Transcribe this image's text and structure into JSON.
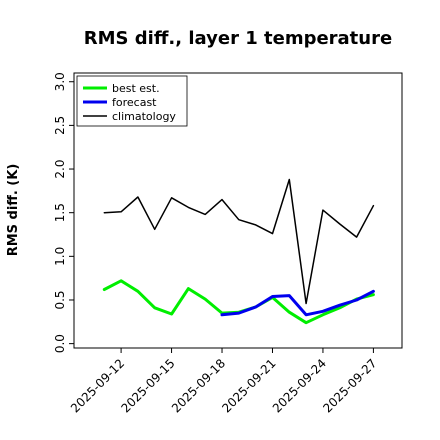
{
  "chart_data": {
    "type": "line",
    "title": "RMS diff., layer 1 temperature",
    "xlabel": "",
    "ylabel": "RMS diff. (K)",
    "ylim": [
      -0.05,
      3.1
    ],
    "yticks": [
      0.0,
      0.5,
      1.0,
      1.5,
      2.0,
      2.5,
      3.0
    ],
    "ytick_labels": [
      "0.0",
      "0.5",
      "1.0",
      "1.5",
      "2.0",
      "2.5",
      "3.0"
    ],
    "xticks": [
      {
        "label": "2025-09-12",
        "day": 12,
        "color": "#000000"
      },
      {
        "label": "2025-09-15",
        "day": 15,
        "color": "#000000"
      },
      {
        "label": "2025-09-18",
        "day": 18,
        "color": "#228b22"
      },
      {
        "label": "2025-09-21",
        "day": 21,
        "color": "#000000"
      },
      {
        "label": "2025-09-24",
        "day": 24,
        "color": "#000000"
      },
      {
        "label": "2025-09-27",
        "day": 27,
        "color": "#000000"
      }
    ],
    "xlim": [
      9.2,
      28.7
    ],
    "legend_position": "top-left",
    "grid": false,
    "series": [
      {
        "name": "best est.",
        "color": "#00ee00",
        "width": 3,
        "x": [
          11,
          12,
          13,
          14,
          15,
          16,
          17,
          18,
          19,
          20,
          21,
          22,
          23,
          24,
          25,
          26,
          27
        ],
        "y": [
          0.62,
          0.72,
          0.6,
          0.41,
          0.34,
          0.63,
          0.51,
          0.35,
          0.36,
          0.42,
          0.53,
          0.36,
          0.24,
          0.33,
          0.41,
          0.51,
          0.56
        ]
      },
      {
        "name": "forecast",
        "color": "#0000ee",
        "width": 3,
        "x": [
          18,
          19,
          20,
          21,
          22,
          23,
          24,
          25,
          26,
          27
        ],
        "y": [
          0.33,
          0.35,
          0.42,
          0.54,
          0.55,
          0.33,
          0.37,
          0.44,
          0.5,
          0.6
        ]
      },
      {
        "name": "climatology",
        "color": "#000000",
        "width": 1.5,
        "x": [
          11,
          12,
          13,
          14,
          15,
          16,
          17,
          18,
          19,
          20,
          21,
          22,
          23,
          24,
          25,
          26,
          27
        ],
        "y": [
          1.5,
          1.51,
          1.68,
          1.31,
          1.67,
          1.56,
          1.48,
          1.65,
          1.42,
          1.36,
          1.26,
          1.88,
          0.46,
          1.53,
          1.37,
          1.22,
          1.58
        ]
      }
    ]
  }
}
